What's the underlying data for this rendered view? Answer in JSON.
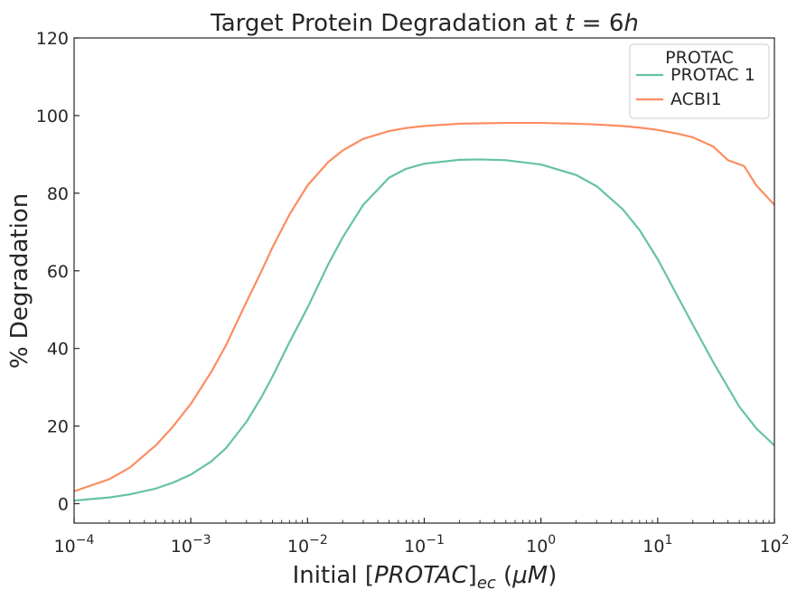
{
  "chart_data": {
    "type": "line",
    "title": "Target Protein Degradation at t = 6h",
    "title_parts": {
      "prefix": "Target Protein Degradation at ",
      "math_var": "t",
      "math_rest": " = 6",
      "math_unit": "h"
    },
    "xlabel": "Initial [PROTAC]ec (μM)",
    "xlabel_parts": {
      "prefix": "Initial ",
      "bracket_open": "[",
      "var": "PROTAC",
      "bracket_close": "]",
      "subscript": "ec",
      "unit_open": " (",
      "unit_var": "μM",
      "unit_close": ")"
    },
    "ylabel": "% Degradation",
    "x_scale": "log",
    "xlim": [
      0.0001,
      100
    ],
    "ylim": [
      -5,
      120
    ],
    "x_ticks": [
      0.0001,
      0.001,
      0.01,
      0.1,
      1,
      10,
      100
    ],
    "x_tick_labels": [
      {
        "base": "10",
        "exp": "−4"
      },
      {
        "base": "10",
        "exp": "−3"
      },
      {
        "base": "10",
        "exp": "−2"
      },
      {
        "base": "10",
        "exp": "−1"
      },
      {
        "base": "10",
        "exp": "0"
      },
      {
        "base": "10",
        "exp": "1"
      },
      {
        "base": "10",
        "exp": "2"
      }
    ],
    "y_ticks": [
      0,
      20,
      40,
      60,
      80,
      100,
      120
    ],
    "grid": false,
    "legend": {
      "title": "PROTAC",
      "position": "top-right"
    },
    "series": [
      {
        "name": "PROTAC 1",
        "color": "#66c2a5",
        "x": [
          0.0001,
          0.0002,
          0.0003,
          0.0005,
          0.0007,
          0.001,
          0.0015,
          0.002,
          0.003,
          0.004,
          0.005,
          0.007,
          0.01,
          0.015,
          0.02,
          0.03,
          0.05,
          0.07,
          0.1,
          0.2,
          0.3,
          0.5,
          1,
          2,
          3,
          5,
          7,
          10,
          15,
          20,
          30,
          50,
          70,
          100
        ],
        "y": [
          0.8,
          1.6,
          2.4,
          3.9,
          5.4,
          7.5,
          10.9,
          14.3,
          21.1,
          27.3,
          32.7,
          41.6,
          50.5,
          61.6,
          68.6,
          77.0,
          84.0,
          86.3,
          87.6,
          88.6,
          88.7,
          88.5,
          87.4,
          84.7,
          81.8,
          75.9,
          70.5,
          63.0,
          53.1,
          46.1,
          36.4,
          25.0,
          19.4,
          15.0
        ]
      },
      {
        "name": "ACBI1",
        "color": "#fc8d62",
        "x": [
          0.0001,
          0.0002,
          0.0003,
          0.0005,
          0.0007,
          0.001,
          0.0015,
          0.002,
          0.003,
          0.004,
          0.005,
          0.007,
          0.01,
          0.015,
          0.02,
          0.03,
          0.05,
          0.07,
          0.1,
          0.2,
          0.3,
          0.5,
          1,
          2,
          3,
          5,
          7,
          10,
          15,
          20,
          30,
          40,
          55,
          70,
          100
        ],
        "y": [
          3.2,
          6.3,
          9.3,
          15.0,
          19.8,
          25.7,
          34.0,
          40.8,
          52.0,
          59.7,
          66.0,
          74.5,
          82.0,
          88.0,
          91.0,
          94.0,
          96.0,
          96.8,
          97.3,
          97.9,
          98.0,
          98.1,
          98.1,
          97.9,
          97.7,
          97.3,
          96.9,
          96.3,
          95.3,
          94.4,
          92.0,
          88.5,
          87.0,
          82.0,
          77.0
        ]
      }
    ]
  }
}
